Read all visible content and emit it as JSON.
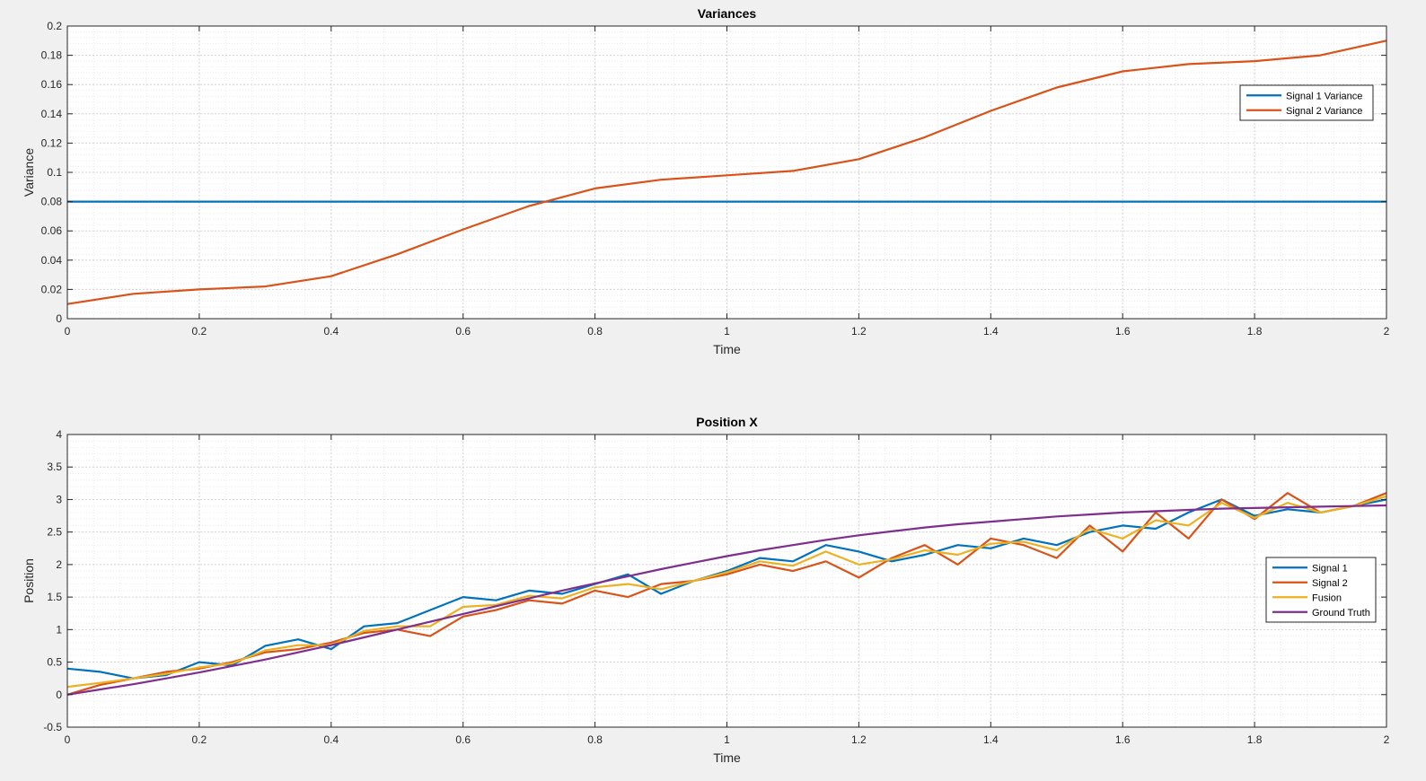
{
  "chart_data": [
    {
      "type": "line",
      "title": "Variances",
      "xlabel": "Time",
      "ylabel": "Variance",
      "xlim": [
        0,
        2
      ],
      "ylim": [
        0,
        0.2
      ],
      "xticks": [
        0,
        0.2,
        0.4,
        0.6,
        0.8,
        1,
        1.2,
        1.4,
        1.6,
        1.8,
        2
      ],
      "xtick_labels": [
        "0",
        "0.2",
        "0.4",
        "0.6",
        "0.8",
        "1",
        "1.2",
        "1.4",
        "1.6",
        "1.8",
        "2"
      ],
      "yticks": [
        0,
        0.02,
        0.04,
        0.06,
        0.08,
        0.1,
        0.12,
        0.14,
        0.16,
        0.18,
        0.2
      ],
      "ytick_labels": [
        "0",
        "0.02",
        "0.04",
        "0.06",
        "0.08",
        "0.1",
        "0.12",
        "0.14",
        "0.16",
        "0.18",
        "0.2"
      ],
      "grid": true,
      "minor_grid": true,
      "legend_position": "top-right",
      "x": [
        0,
        0.1,
        0.2,
        0.3,
        0.4,
        0.5,
        0.6,
        0.7,
        0.8,
        0.9,
        1.0,
        1.1,
        1.2,
        1.3,
        1.4,
        1.5,
        1.6,
        1.7,
        1.8,
        1.9,
        2.0
      ],
      "series": [
        {
          "name": "Signal 1 Variance",
          "color": "#0072bd",
          "values": [
            0.08,
            0.08,
            0.08,
            0.08,
            0.08,
            0.08,
            0.08,
            0.08,
            0.08,
            0.08,
            0.08,
            0.08,
            0.08,
            0.08,
            0.08,
            0.08,
            0.08,
            0.08,
            0.08,
            0.08,
            0.08
          ]
        },
        {
          "name": "Signal 2 Variance",
          "color": "#d95319",
          "values": [
            0.01,
            0.017,
            0.02,
            0.022,
            0.029,
            0.044,
            0.061,
            0.077,
            0.089,
            0.095,
            0.098,
            0.101,
            0.109,
            0.124,
            0.142,
            0.158,
            0.169,
            0.174,
            0.176,
            0.18,
            0.19
          ]
        }
      ]
    },
    {
      "type": "line",
      "title": "Position X",
      "xlabel": "Time",
      "ylabel": "Position",
      "xlim": [
        0,
        2
      ],
      "ylim": [
        -0.5,
        4
      ],
      "xticks": [
        0,
        0.2,
        0.4,
        0.6,
        0.8,
        1,
        1.2,
        1.4,
        1.6,
        1.8,
        2
      ],
      "xtick_labels": [
        "0",
        "0.2",
        "0.4",
        "0.6",
        "0.8",
        "1",
        "1.2",
        "1.4",
        "1.6",
        "1.8",
        "2"
      ],
      "yticks": [
        -0.5,
        0,
        0.5,
        1,
        1.5,
        2,
        2.5,
        3,
        3.5,
        4
      ],
      "ytick_labels": [
        "-0.5",
        "0",
        "0.5",
        "1",
        "1.5",
        "2",
        "2.5",
        "3",
        "3.5",
        "4"
      ],
      "grid": true,
      "minor_grid": true,
      "legend_position": "right",
      "x": [
        0.0,
        0.05,
        0.1,
        0.15,
        0.2,
        0.25,
        0.3,
        0.35,
        0.4,
        0.45,
        0.5,
        0.55,
        0.6,
        0.65,
        0.7,
        0.75,
        0.8,
        0.85,
        0.9,
        0.95,
        1.0,
        1.05,
        1.1,
        1.15,
        1.2,
        1.25,
        1.3,
        1.35,
        1.4,
        1.45,
        1.5,
        1.55,
        1.6,
        1.65,
        1.7,
        1.75,
        1.8,
        1.85,
        1.9,
        1.95,
        2.0
      ],
      "series": [
        {
          "name": "Signal 1",
          "color": "#0072bd",
          "values": [
            0.4,
            0.35,
            0.25,
            0.3,
            0.5,
            0.45,
            0.75,
            0.85,
            0.7,
            1.05,
            1.1,
            1.3,
            1.5,
            1.45,
            1.6,
            1.55,
            1.7,
            1.85,
            1.55,
            1.75,
            1.9,
            2.1,
            2.05,
            2.3,
            2.2,
            2.05,
            2.15,
            2.3,
            2.25,
            2.4,
            2.3,
            2.5,
            2.6,
            2.55,
            2.8,
            3.0,
            2.75,
            2.85,
            2.8,
            2.9,
            3.0
          ]
        },
        {
          "name": "Signal 2",
          "color": "#d95319",
          "values": [
            0.0,
            0.15,
            0.25,
            0.35,
            0.4,
            0.5,
            0.65,
            0.7,
            0.8,
            0.95,
            1.0,
            0.9,
            1.2,
            1.3,
            1.45,
            1.4,
            1.6,
            1.5,
            1.7,
            1.75,
            1.85,
            2.0,
            1.9,
            2.05,
            1.8,
            2.1,
            2.3,
            2.0,
            2.4,
            2.3,
            2.1,
            2.6,
            2.2,
            2.8,
            2.4,
            3.0,
            2.7,
            3.1,
            2.8,
            2.9,
            3.1
          ]
        },
        {
          "name": "Fusion",
          "color": "#edb120",
          "values": [
            0.12,
            0.18,
            0.25,
            0.32,
            0.42,
            0.48,
            0.68,
            0.76,
            0.76,
            0.98,
            1.05,
            1.05,
            1.35,
            1.38,
            1.52,
            1.48,
            1.65,
            1.7,
            1.62,
            1.75,
            1.88,
            2.05,
            1.98,
            2.2,
            2.0,
            2.08,
            2.22,
            2.15,
            2.32,
            2.35,
            2.22,
            2.55,
            2.4,
            2.68,
            2.6,
            2.95,
            2.72,
            2.95,
            2.8,
            2.9,
            3.05
          ]
        },
        {
          "name": "Ground Truth",
          "color": "#7e2f8e",
          "values": [
            0.0,
            0.08,
            0.16,
            0.25,
            0.34,
            0.44,
            0.54,
            0.65,
            0.76,
            0.88,
            1.0,
            1.12,
            1.24,
            1.36,
            1.48,
            1.6,
            1.71,
            1.82,
            1.93,
            2.03,
            2.13,
            2.22,
            2.3,
            2.38,
            2.45,
            2.51,
            2.57,
            2.62,
            2.66,
            2.7,
            2.74,
            2.77,
            2.8,
            2.82,
            2.84,
            2.86,
            2.87,
            2.88,
            2.89,
            2.9,
            2.91
          ]
        }
      ]
    }
  ]
}
